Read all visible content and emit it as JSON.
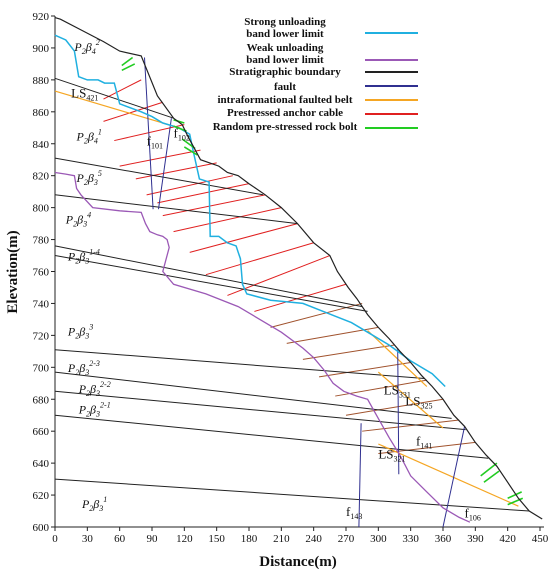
{
  "chart_data": {
    "type": "diagram",
    "xlabel": "Distance(m)",
    "ylabel": "Elevation(m)",
    "xlim": [
      0,
      450
    ],
    "ylim": [
      600,
      920
    ],
    "xticks": [
      0,
      30,
      60,
      90,
      120,
      150,
      180,
      210,
      240,
      270,
      300,
      330,
      360,
      390,
      420,
      450
    ],
    "yticks": [
      600,
      620,
      640,
      660,
      680,
      700,
      720,
      740,
      760,
      780,
      800,
      820,
      840,
      860,
      880,
      900,
      920
    ],
    "legend": [
      {
        "label": "Strong unloading band lower limit",
        "color": "#20b0e0"
      },
      {
        "label": "Weak unloading band lower limit",
        "color": "#9b59b6"
      },
      {
        "label": "Stratigraphic boundary",
        "color": "#222222"
      },
      {
        "label": "fault",
        "color": "#303090"
      },
      {
        "label": "intraformational faulted belt",
        "color": "#f5a623"
      },
      {
        "label": "Prestressed anchor cable",
        "color": "#e02020"
      },
      {
        "label": "Random pre-stressed rock bolt",
        "color": "#22cc22"
      }
    ],
    "colors": {
      "ground": "#222222",
      "strong": "#20b0e0",
      "weak": "#9b59b6",
      "boundary": "#222222",
      "fault": "#303090",
      "belt": "#f5a623",
      "cable": "#e02020",
      "cable_low": "#a0522d",
      "bolt": "#22cc22"
    },
    "ground_profile": [
      [
        0,
        919
      ],
      [
        5,
        918
      ],
      [
        25,
        911
      ],
      [
        45,
        904
      ],
      [
        60,
        898
      ],
      [
        80,
        895
      ],
      [
        95,
        870
      ],
      [
        110,
        856
      ],
      [
        118,
        852
      ],
      [
        123,
        845
      ],
      [
        135,
        830
      ],
      [
        152,
        826
      ],
      [
        160,
        822
      ],
      [
        170,
        820
      ],
      [
        180,
        815
      ],
      [
        195,
        808
      ],
      [
        210,
        800
      ],
      [
        225,
        790
      ],
      [
        240,
        778
      ],
      [
        255,
        770
      ],
      [
        262,
        760
      ],
      [
        272,
        750
      ],
      [
        280,
        743
      ],
      [
        290,
        733
      ],
      [
        300,
        725
      ],
      [
        310,
        718
      ],
      [
        320,
        710
      ],
      [
        330,
        703
      ],
      [
        340,
        695
      ],
      [
        350,
        688
      ],
      [
        360,
        680
      ],
      [
        370,
        670
      ],
      [
        380,
        663
      ],
      [
        390,
        653
      ],
      [
        400,
        645
      ],
      [
        410,
        638
      ],
      [
        420,
        628
      ],
      [
        430,
        618
      ],
      [
        440,
        610
      ],
      [
        452,
        605
      ]
    ],
    "strong_unloading": [
      [
        0,
        908
      ],
      [
        10,
        905
      ],
      [
        18,
        898
      ],
      [
        22,
        882
      ],
      [
        30,
        880
      ],
      [
        40,
        880
      ],
      [
        46,
        878
      ],
      [
        55,
        878
      ],
      [
        60,
        865
      ],
      [
        80,
        860
      ],
      [
        90,
        857
      ],
      [
        100,
        853
      ],
      [
        115,
        850
      ],
      [
        125,
        846
      ],
      [
        128,
        836
      ],
      [
        134,
        818
      ],
      [
        143,
        816
      ],
      [
        144,
        782
      ],
      [
        152,
        782
      ],
      [
        160,
        778
      ],
      [
        168,
        776
      ],
      [
        170,
        772
      ],
      [
        172,
        768
      ],
      [
        174,
        752
      ],
      [
        178,
        746
      ],
      [
        200,
        742
      ],
      [
        230,
        740
      ],
      [
        245,
        736
      ],
      [
        260,
        732
      ],
      [
        275,
        728
      ],
      [
        290,
        722
      ],
      [
        310,
        714
      ],
      [
        330,
        704
      ],
      [
        350,
        696
      ],
      [
        362,
        688
      ]
    ],
    "weak_unloading": [
      [
        0,
        822
      ],
      [
        10,
        821
      ],
      [
        18,
        820
      ],
      [
        20,
        812
      ],
      [
        24,
        808
      ],
      [
        35,
        800
      ],
      [
        60,
        798
      ],
      [
        80,
        797
      ],
      [
        84,
        790
      ],
      [
        88,
        785
      ],
      [
        95,
        783
      ],
      [
        100,
        782
      ],
      [
        104,
        780
      ],
      [
        106,
        775
      ],
      [
        100,
        760
      ],
      [
        110,
        752
      ],
      [
        140,
        746
      ],
      [
        170,
        738
      ],
      [
        190,
        730
      ],
      [
        210,
        722
      ],
      [
        230,
        712
      ],
      [
        240,
        706
      ],
      [
        250,
        698
      ],
      [
        258,
        690
      ],
      [
        268,
        685
      ],
      [
        280,
        682
      ],
      [
        290,
        680
      ],
      [
        300,
        668
      ],
      [
        310,
        656
      ],
      [
        320,
        645
      ],
      [
        330,
        632
      ],
      [
        345,
        622
      ],
      [
        360,
        612
      ],
      [
        375,
        606
      ],
      [
        385,
        603
      ]
    ],
    "stratigraphic_boundaries": [
      [
        [
          0,
          881
        ],
        [
          110,
          856
        ]
      ],
      [
        [
          0,
          831
        ],
        [
          193,
          808
        ]
      ],
      [
        [
          0,
          808
        ],
        [
          225,
          790
        ]
      ],
      [
        [
          0,
          776
        ],
        [
          285,
          738
        ]
      ],
      [
        [
          0,
          770
        ],
        [
          290,
          735
        ]
      ],
      [
        [
          0,
          711
        ],
        [
          343,
          693
        ]
      ],
      [
        [
          0,
          697
        ],
        [
          368,
          668
        ]
      ],
      [
        [
          0,
          685
        ],
        [
          381,
          661
        ]
      ],
      [
        [
          0,
          670
        ],
        [
          402,
          643
        ]
      ],
      [
        [
          0,
          630
        ],
        [
          440,
          610
        ]
      ]
    ],
    "faulted_belts": [
      [
        [
          0,
          873
        ],
        [
          110,
          851
        ]
      ],
      [
        [
          290,
          723
        ],
        [
          345,
          688
        ]
      ],
      [
        [
          300,
          697
        ],
        [
          360,
          662
        ]
      ],
      [
        [
          300,
          652
        ],
        [
          430,
          613
        ]
      ]
    ],
    "faults": [
      {
        "label": "f",
        "sub": "101",
        "points": [
          [
            83,
            894
          ],
          [
            91,
            799
          ]
        ]
      },
      {
        "label": "f",
        "sub": "102",
        "points": [
          [
            108,
            856
          ],
          [
            96,
            799
          ]
        ]
      },
      {
        "label": "f",
        "sub": "143",
        "points": [
          [
            284,
            665
          ],
          [
            282,
            600
          ]
        ]
      },
      {
        "label": "f",
        "sub": "106",
        "points": [
          [
            380,
            663
          ],
          [
            360,
            600
          ]
        ]
      },
      {
        "label": "",
        "sub": "",
        "points": [
          [
            318,
            712
          ],
          [
            319,
            633
          ]
        ]
      }
    ],
    "anchor_cables": [
      [
        [
          80,
          880
        ],
        [
          45,
          868
        ]
      ],
      [
        [
          100,
          866
        ],
        [
          45,
          854
        ]
      ],
      [
        [
          120,
          852
        ],
        [
          55,
          842
        ]
      ],
      [
        [
          135,
          836
        ],
        [
          60,
          826
        ]
      ],
      [
        [
          150,
          828
        ],
        [
          75,
          818
        ]
      ],
      [
        [
          165,
          820
        ],
        [
          85,
          808
        ]
      ],
      [
        [
          180,
          815
        ],
        [
          95,
          803
        ]
      ],
      [
        [
          195,
          808
        ],
        [
          100,
          795
        ]
      ],
      [
        [
          210,
          800
        ],
        [
          110,
          785
        ]
      ],
      [
        [
          225,
          790
        ],
        [
          125,
          772
        ]
      ],
      [
        [
          240,
          778
        ],
        [
          140,
          758
        ]
      ],
      [
        [
          255,
          770
        ],
        [
          160,
          745
        ]
      ],
      [
        [
          270,
          752
        ],
        [
          185,
          735
        ]
      ],
      [
        [
          285,
          740
        ],
        [
          200,
          725
        ]
      ],
      [
        [
          300,
          725
        ],
        [
          215,
          715
        ]
      ],
      [
        [
          315,
          714
        ],
        [
          230,
          705
        ]
      ],
      [
        [
          330,
          703
        ],
        [
          245,
          694
        ]
      ],
      [
        [
          345,
          692
        ],
        [
          260,
          682
        ]
      ],
      [
        [
          360,
          680
        ],
        [
          270,
          670
        ]
      ],
      [
        [
          375,
          667
        ],
        [
          285,
          660
        ]
      ],
      [
        [
          390,
          653
        ],
        [
          300,
          646
        ]
      ]
    ],
    "rock_bolts": [
      [
        [
          62,
          889
        ],
        [
          72,
          894
        ]
      ],
      [
        [
          62,
          886
        ],
        [
          74,
          890
        ]
      ],
      [
        [
          110,
          855
        ],
        [
          120,
          853
        ]
      ],
      [
        [
          110,
          851
        ],
        [
          122,
          848
        ]
      ],
      [
        [
          118,
          843
        ],
        [
          130,
          837
        ]
      ],
      [
        [
          120,
          838
        ],
        [
          132,
          833
        ]
      ],
      [
        [
          395,
          632
        ],
        [
          410,
          640
        ]
      ],
      [
        [
          398,
          628
        ],
        [
          412,
          635
        ]
      ],
      [
        [
          420,
          618
        ],
        [
          433,
          622
        ]
      ],
      [
        [
          420,
          614
        ],
        [
          434,
          618
        ]
      ]
    ],
    "unit_labels": [
      {
        "main": "P",
        "s1": "2",
        "greek": "β",
        "s2": "4",
        "sup": "2",
        "x": 18,
        "y": 898
      },
      {
        "main": "P",
        "s1": "2",
        "greek": "β",
        "s2": "4",
        "sup": "1",
        "x": 20,
        "y": 842
      },
      {
        "main": "P",
        "s1": "2",
        "greek": "β",
        "s2": "3",
        "sup": "5",
        "x": 20,
        "y": 816
      },
      {
        "main": "P",
        "s1": "2",
        "greek": "β",
        "s2": "3",
        "sup": "4",
        "x": 10,
        "y": 790
      },
      {
        "main": "P",
        "s1": "2",
        "greek": "β",
        "s2": "3",
        "sup": "1-4",
        "x": 12,
        "y": 767
      },
      {
        "main": "P",
        "s1": "2",
        "greek": "β",
        "s2": "3",
        "sup": "3",
        "x": 12,
        "y": 720
      },
      {
        "main": "P",
        "s1": "2",
        "greek": "β",
        "s2": "3",
        "sup": "2-3",
        "x": 12,
        "y": 697
      },
      {
        "main": "P",
        "s1": "2",
        "greek": "β",
        "s2": "3",
        "sup": "2-2",
        "x": 22,
        "y": 684
      },
      {
        "main": "P",
        "s1": "2",
        "greek": "β",
        "s2": "3",
        "sup": "2-1",
        "x": 22,
        "y": 671
      },
      {
        "main": "P",
        "s1": "2",
        "greek": "β",
        "s2": "3",
        "sup": "1",
        "x": 25,
        "y": 612
      }
    ],
    "zone_labels": [
      {
        "main": "LS",
        "sub": "421",
        "x": 15,
        "y": 869
      },
      {
        "main": "LS",
        "sub": "331",
        "x": 305,
        "y": 683
      },
      {
        "main": "LS",
        "sub": "325",
        "x": 325,
        "y": 676
      },
      {
        "main": "LS",
        "sub": "321",
        "x": 300,
        "y": 643
      }
    ],
    "fault_labels": [
      {
        "main": "f",
        "sub": "101",
        "x": 85,
        "y": 839
      },
      {
        "main": "f",
        "sub": "102",
        "x": 110,
        "y": 844
      },
      {
        "main": "f",
        "sub": "141",
        "x": 335,
        "y": 651
      },
      {
        "main": "f",
        "sub": "143",
        "x": 270,
        "y": 607
      },
      {
        "main": "f",
        "sub": "106",
        "x": 380,
        "y": 606
      }
    ]
  }
}
